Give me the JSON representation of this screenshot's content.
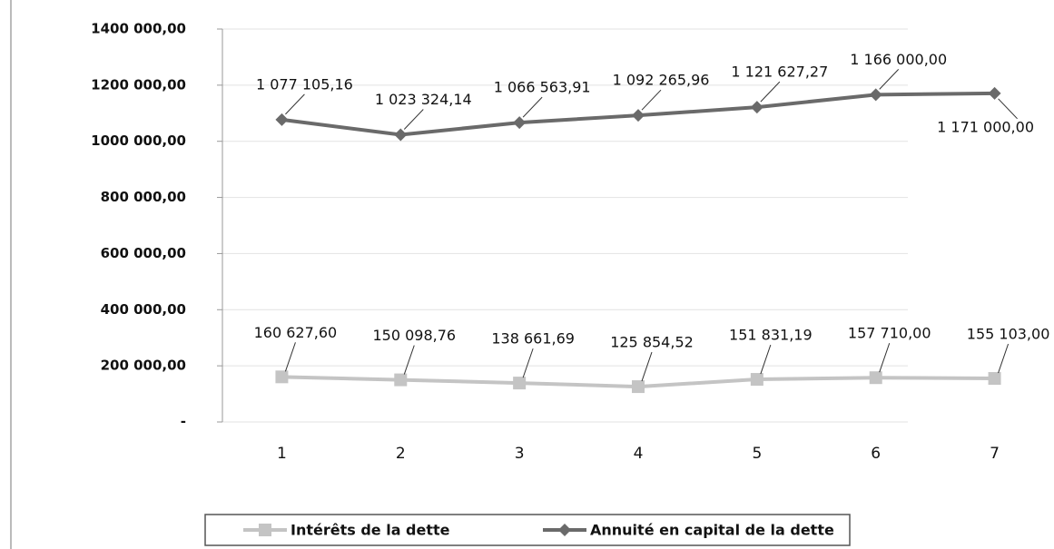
{
  "chart_data": {
    "type": "line",
    "categories": [
      "1",
      "2",
      "3",
      "4",
      "5",
      "6",
      "7"
    ],
    "series": [
      {
        "name": "Intérêts de la dette",
        "color": "#c4c4c4",
        "marker": "square",
        "values": [
          160627.6,
          150098.76,
          138661.69,
          125854.52,
          151831.19,
          157710.0,
          155103.0
        ],
        "value_labels": [
          "160 627,60",
          "150 098,76",
          "138 661,69",
          "125 854,52",
          "151 831,19",
          "157 710,00",
          "155 103,00"
        ]
      },
      {
        "name": "Annuité en capital de la dette",
        "color": "#6a6a6a",
        "marker": "diamond",
        "values": [
          1077105.16,
          1023324.14,
          1066563.91,
          1092265.96,
          1121627.27,
          1166000.0,
          1171000.0
        ],
        "value_labels": [
          "1 077 105,16",
          "1 023 324,14",
          "1 066 563,91",
          "1 092 265,96",
          "1 121 627,27",
          "1 166 000,00",
          "1 171 000,00"
        ]
      }
    ],
    "ylim": [
      0,
      1400000
    ],
    "yticks": [
      {
        "value": 0,
        "label": "-"
      },
      {
        "value": 200000,
        "label": "200 000,00"
      },
      {
        "value": 400000,
        "label": "400 000,00"
      },
      {
        "value": 600000,
        "label": "600 000,00"
      },
      {
        "value": 800000,
        "label": "800 000,00"
      },
      {
        "value": 1000000,
        "label": "1000 000,00"
      },
      {
        "value": 1200000,
        "label": "1200 000,00"
      },
      {
        "value": 1400000,
        "label": "1400 000,00"
      }
    ],
    "grid": true
  }
}
